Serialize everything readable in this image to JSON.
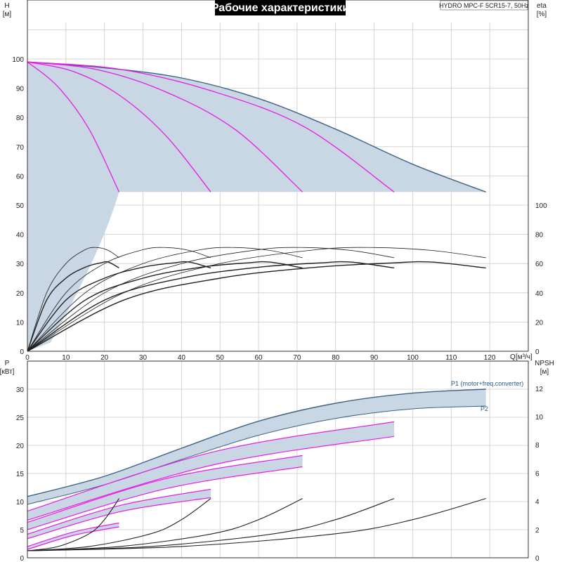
{
  "title": "Рабочие характеристики",
  "model": "HYDRO MPC-F 5CR15-7, 50Hz",
  "colors": {
    "grid": "#cccccc",
    "band": "#c9d6e3",
    "envelope": "#3d6287",
    "magenta": "#e51ee5",
    "black": "#222222",
    "label_blue": "#2b5c8a",
    "title_bg": "#000000"
  },
  "chart_data": [
    {
      "type": "line",
      "panel": "head",
      "ylabel": "H",
      "yunit": "[м]",
      "xlabel": "Q",
      "xunit": "[м³/ч]",
      "xlim": [
        0,
        130
      ],
      "ylim_visible": [
        0,
        100
      ],
      "xticks": [
        0,
        10,
        20,
        30,
        40,
        50,
        60,
        70,
        80,
        90,
        100,
        110,
        120
      ],
      "yticks": [
        0,
        10,
        20,
        30,
        40,
        50,
        60,
        70,
        80,
        90,
        100
      ],
      "grid": true,
      "series": [
        {
          "kind": "envelope",
          "x": [
            0,
            20,
            40,
            60,
            80,
            100,
            119
          ],
          "y": [
            99,
            97,
            93.5,
            86.5,
            76,
            64,
            54.5
          ]
        },
        {
          "kind": "pump",
          "x": [
            0,
            8,
            16,
            23.8
          ],
          "y": [
            99,
            90.4,
            76,
            54.5
          ]
        },
        {
          "kind": "pump",
          "x": [
            0,
            12,
            24,
            36,
            47.6
          ],
          "y": [
            99,
            95.7,
            87.5,
            73.7,
            54.5
          ]
        },
        {
          "kind": "pump",
          "x": [
            0,
            18,
            36,
            54,
            71.4
          ],
          "y": [
            99,
            96.4,
            88.7,
            75.8,
            54.5
          ]
        },
        {
          "kind": "pump",
          "x": [
            0,
            24,
            48,
            72,
            95.2
          ],
          "y": [
            99,
            96.5,
            89.0,
            76.7,
            54.5
          ]
        }
      ],
      "pressure_limit": 54.5
    },
    {
      "type": "line",
      "panel": "efficiency",
      "ylabel": "eta",
      "yunit": "[%]",
      "yticks": [
        0,
        20,
        40,
        60,
        80,
        100
      ],
      "series": [
        {
          "x": [
            0,
            5,
            10,
            15,
            18,
            21,
            23.8
          ],
          "y": [
            0,
            40,
            60,
            69.5,
            71,
            69,
            64
          ]
        },
        {
          "x": [
            0,
            10,
            20,
            30,
            36,
            42,
            47.6
          ],
          "y": [
            0,
            40,
            60,
            69.5,
            71,
            69,
            64
          ]
        },
        {
          "x": [
            0,
            15,
            30,
            45,
            54,
            63,
            71.4
          ],
          "y": [
            0,
            40,
            60,
            69.5,
            71,
            69,
            64
          ]
        },
        {
          "x": [
            0,
            20,
            40,
            60,
            72,
            84,
            95.2
          ],
          "y": [
            0,
            40,
            60,
            69.5,
            71,
            69,
            64
          ]
        },
        {
          "x": [
            0,
            25,
            50,
            75,
            90,
            105,
            119
          ],
          "y": [
            0,
            40,
            60,
            69.5,
            71,
            69,
            64
          ]
        },
        {
          "x": [
            0,
            5,
            10,
            15,
            19,
            21,
            23.8
          ],
          "y": [
            0,
            35,
            50,
            57.5,
            60.5,
            61,
            57
          ]
        },
        {
          "x": [
            0,
            10,
            20,
            30,
            38,
            42,
            47.6
          ],
          "y": [
            0,
            35,
            50,
            57.5,
            60.5,
            61,
            57
          ]
        },
        {
          "x": [
            0,
            15,
            30,
            45,
            57,
            63,
            71.4
          ],
          "y": [
            0,
            35,
            50,
            57.5,
            60.5,
            61,
            57
          ]
        },
        {
          "x": [
            0,
            20,
            40,
            60,
            76,
            84,
            95.2
          ],
          "y": [
            0,
            35,
            50,
            57.5,
            60.5,
            61,
            57
          ]
        },
        {
          "x": [
            0,
            25,
            50,
            75,
            95,
            105,
            119
          ],
          "y": [
            0,
            35,
            50,
            57.5,
            60.5,
            61,
            57
          ]
        }
      ]
    },
    {
      "type": "line",
      "panel": "power",
      "ylabel": "P",
      "yunit": "[кВт]",
      "xlim": [
        0,
        130
      ],
      "ylim": [
        0,
        32
      ],
      "yticks": [
        0,
        5,
        10,
        15,
        20,
        25,
        30
      ],
      "grid": true,
      "series": [
        {
          "name": "P1 (motor+freq.converter)",
          "kind": "envelope",
          "x": [
            0,
            20,
            40,
            60,
            80,
            100,
            119
          ],
          "y": [
            10.9,
            14.5,
            19.5,
            24.3,
            27.5,
            29.3,
            30.0
          ]
        },
        {
          "name": "P2",
          "kind": "envelope",
          "x": [
            0,
            20,
            40,
            60,
            80,
            100,
            119
          ],
          "y": [
            9.5,
            13.0,
            17.5,
            21.8,
            24.8,
            26.5,
            27.0
          ]
        },
        {
          "kind": "p1",
          "x": [
            0,
            12,
            23.8
          ],
          "y": [
            2.0,
            4.6,
            6.2
          ]
        },
        {
          "kind": "p1",
          "x": [
            0,
            24,
            47.6
          ],
          "y": [
            4.2,
            9.3,
            12.2
          ]
        },
        {
          "kind": "p1",
          "x": [
            0,
            36,
            71.4
          ],
          "y": [
            6.3,
            14.1,
            18.2
          ]
        },
        {
          "kind": "p1",
          "x": [
            0,
            48,
            95.2
          ],
          "y": [
            8.3,
            18.8,
            24.2
          ]
        },
        {
          "kind": "p2",
          "x": [
            0,
            12,
            23.8
          ],
          "y": [
            1.5,
            4.0,
            5.5
          ]
        },
        {
          "kind": "p2",
          "x": [
            0,
            24,
            47.6
          ],
          "y": [
            3.4,
            8.2,
            10.7
          ]
        },
        {
          "kind": "p2",
          "x": [
            0,
            36,
            71.4
          ],
          "y": [
            5.0,
            12.3,
            16.2
          ]
        },
        {
          "kind": "p2",
          "x": [
            0,
            48,
            95.2
          ],
          "y": [
            6.7,
            16.5,
            21.6
          ]
        }
      ]
    },
    {
      "type": "line",
      "panel": "npsh",
      "ylabel": "NPSH",
      "yunit": "[м]",
      "yticks": [
        0,
        2,
        4,
        6,
        8,
        10,
        12
      ],
      "series": [
        {
          "x": [
            0,
            8,
            16,
            20,
            23.8
          ],
          "y": [
            0.5,
            0.8,
            1.7,
            2.7,
            4.2
          ]
        },
        {
          "x": [
            0,
            16,
            32,
            40,
            47.6
          ],
          "y": [
            0.5,
            0.8,
            1.7,
            2.7,
            4.2
          ]
        },
        {
          "x": [
            0,
            24,
            48,
            60,
            71.4
          ],
          "y": [
            0.5,
            0.8,
            1.7,
            2.7,
            4.2
          ]
        },
        {
          "x": [
            0,
            32,
            64,
            80,
            95.2
          ],
          "y": [
            0.5,
            0.8,
            1.7,
            2.7,
            4.2
          ]
        },
        {
          "x": [
            0,
            40,
            80,
            100,
            119
          ],
          "y": [
            0.5,
            0.8,
            1.7,
            2.7,
            4.2
          ]
        }
      ]
    }
  ]
}
